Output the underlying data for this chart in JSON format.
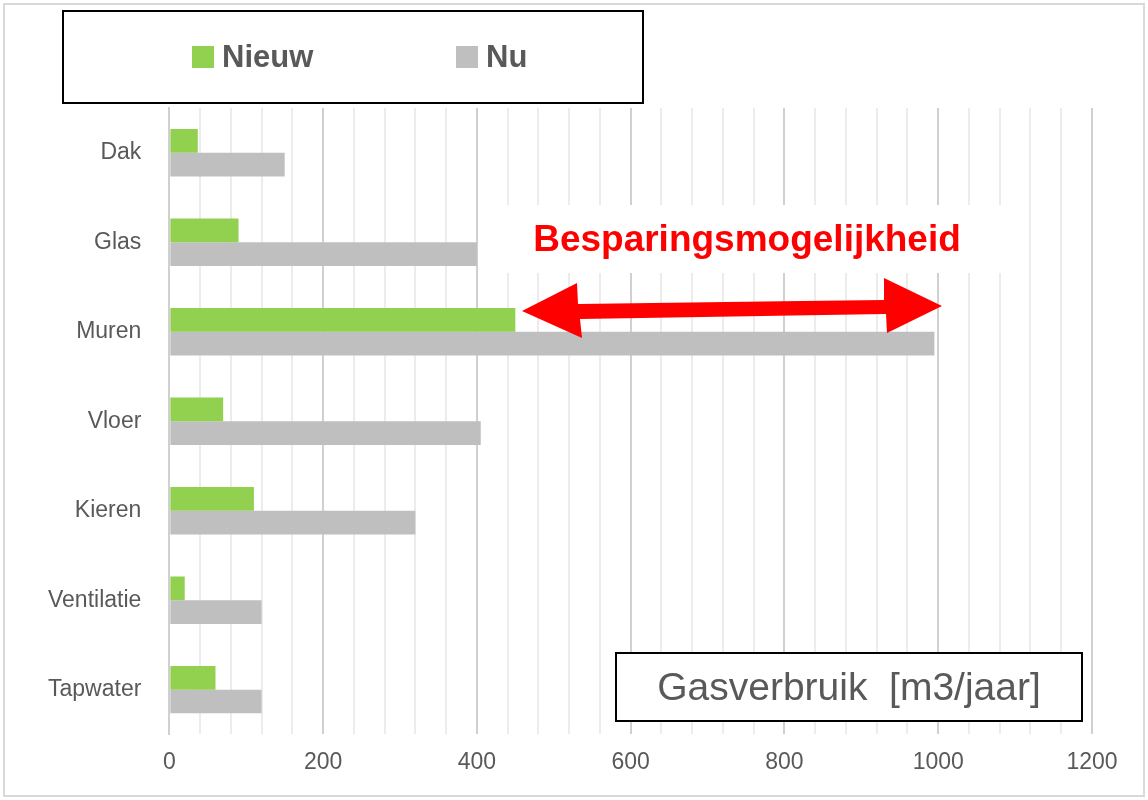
{
  "chart_data": {
    "type": "bar",
    "orientation": "horizontal",
    "xlabel": "Gasverbruik  [m3/jaar]",
    "categories": [
      "Dak",
      "Glas",
      "Muren",
      "Vloer",
      "Kieren",
      "Ventilatie",
      "Tapwater"
    ],
    "series": [
      {
        "name": "Nieuw",
        "color": "#92d050",
        "values": [
          37,
          90,
          450,
          70,
          110,
          20,
          60
        ]
      },
      {
        "name": "Nu",
        "color": "#bfbfbf",
        "values": [
          150,
          400,
          995,
          405,
          320,
          120,
          120
        ]
      }
    ],
    "xlim": [
      0,
      1200
    ],
    "xticks": [
      0,
      {
        "value": 40,
        "label": null
      },
      {
        "value": 80,
        "label": null
      },
      {
        "value": 120,
        "label": null
      },
      {
        "value": 160,
        "label": null
      },
      200,
      {
        "value": 240,
        "label": null
      },
      {
        "value": 280,
        "label": null
      },
      {
        "value": 320,
        "label": null
      },
      {
        "value": 360,
        "label": null
      },
      400,
      {
        "value": 440,
        "label": null
      },
      {
        "value": 480,
        "label": null
      },
      {
        "value": 520,
        "label": null
      },
      {
        "value": 560,
        "label": null
      },
      600,
      {
        "value": 640,
        "label": null
      },
      {
        "value": 680,
        "label": null
      },
      {
        "value": 720,
        "label": null
      },
      {
        "value": 760,
        "label": null
      },
      800,
      {
        "value": 840,
        "label": null
      },
      {
        "value": 880,
        "label": null
      },
      {
        "value": 920,
        "label": null
      },
      {
        "value": 960,
        "label": null
      },
      1000,
      {
        "value": 1040,
        "label": null
      },
      {
        "value": 1080,
        "label": null
      },
      {
        "value": 1120,
        "label": null
      },
      {
        "value": 1160,
        "label": null
      },
      1200
    ],
    "grid": "x",
    "legend": "top left",
    "annotations": [
      "Besparingsmogelijkheid"
    ]
  }
}
